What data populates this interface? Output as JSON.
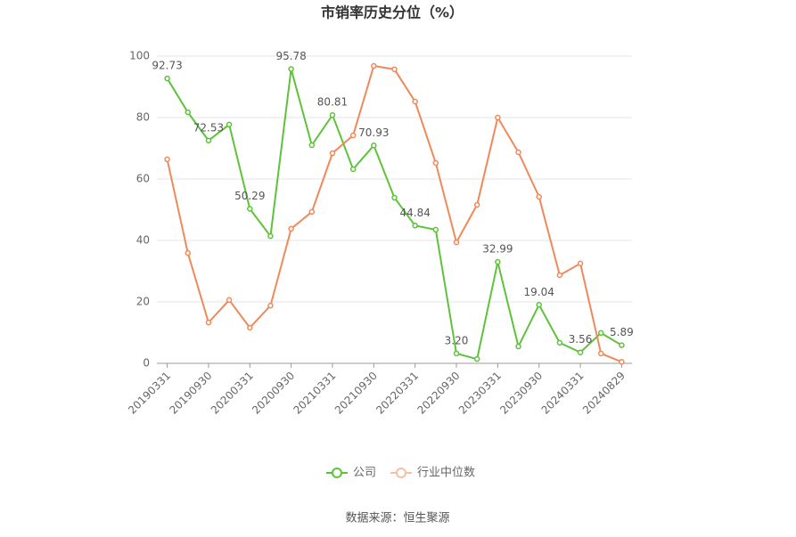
{
  "chart_data": {
    "type": "line",
    "title": "市销率历史分位（%）",
    "categories": [
      "20190331",
      null,
      "20190930",
      null,
      "20200331",
      null,
      "20200930",
      null,
      "20210331",
      null,
      "20210930",
      null,
      "20220331",
      null,
      "20220930",
      null,
      "20230331",
      null,
      "20230930",
      null,
      "20240331",
      null,
      "20240829"
    ],
    "series": [
      {
        "name": "公司",
        "color": "#5ec33a",
        "values": [
          92.73,
          81.7,
          72.53,
          77.7,
          50.29,
          41.4,
          95.78,
          71.0,
          80.81,
          63.2,
          70.93,
          53.9,
          44.84,
          43.5,
          3.2,
          1.4,
          32.99,
          5.5,
          19.04,
          6.7,
          3.56,
          9.9,
          5.89
        ],
        "value_labels": [
          "92.73",
          null,
          "72.53",
          null,
          "50.29",
          null,
          "95.78",
          null,
          "80.81",
          null,
          "70.93",
          null,
          "44.84",
          null,
          "3.20",
          null,
          "32.99",
          null,
          "19.04",
          null,
          "3.56",
          null,
          "5.89"
        ]
      },
      {
        "name": "行业中位数",
        "color": "#f0895a",
        "values": [
          66.4,
          35.9,
          13.3,
          20.6,
          11.6,
          18.8,
          43.8,
          49.3,
          68.4,
          74.2,
          96.8,
          95.7,
          85.2,
          65.2,
          39.4,
          51.6,
          80.0,
          68.7,
          54.2,
          28.7,
          32.5,
          3.2,
          0.5
        ]
      }
    ],
    "ylim": [
      0,
      100
    ],
    "yticks": [
      0,
      20,
      40,
      60,
      80,
      100
    ],
    "grid": true,
    "source": "数据来源：恒生聚源"
  }
}
